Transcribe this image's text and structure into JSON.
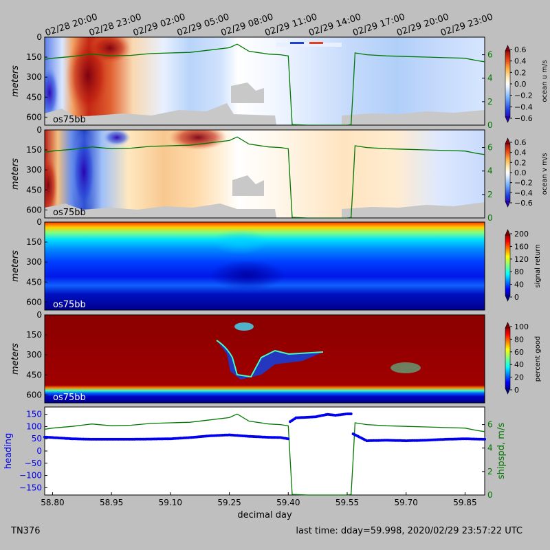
{
  "footer": {
    "cruise": "TN376",
    "last_time": "last time: dday=59.998,  2020/02/29 23:57:22 UTC"
  },
  "colors": {
    "figure_bg": "#bfbfbf",
    "speed_line": "#007700",
    "heading_dots": "#0000ee",
    "missing": "#c8c8c8"
  },
  "chart_data": [
    {
      "type": "heatmap",
      "panel": "ocean-u",
      "ylabel": "meters",
      "y_ticks": [
        "0",
        "150",
        "300",
        "450",
        "600"
      ],
      "ylim": [
        660,
        0
      ],
      "colorbar_label": "ocean u m/s",
      "colorbar_ticks": [
        "0.6",
        "0.4",
        "0.2",
        "0.0",
        "−0.2",
        "−0.4",
        "−0.6"
      ],
      "colorbar_range": [
        -0.6,
        0.6
      ],
      "colormap": "blue-white-red",
      "right_axis_ticks": [
        "0",
        "2",
        "4",
        "6"
      ],
      "right_axis_range": [
        0,
        7.5
      ],
      "instrument_label": "os75bb",
      "top_time_ticks": [
        "02/28 20:00",
        "02/28 23:00",
        "02/29 02:00",
        "02/29 05:00",
        "02/29 08:00",
        "02/29 11:00",
        "02/29 14:00",
        "02/29 17:00",
        "02/29 20:00",
        "02/29 23:00"
      ]
    },
    {
      "type": "heatmap",
      "panel": "ocean-v",
      "ylabel": "meters",
      "y_ticks": [
        "0",
        "150",
        "300",
        "450",
        "600"
      ],
      "ylim": [
        660,
        0
      ],
      "colorbar_label": "ocean v m/s",
      "colorbar_ticks": [
        "0.6",
        "0.4",
        "0.2",
        "0.0",
        "−0.2",
        "−0.4",
        "−0.6"
      ],
      "colorbar_range": [
        -0.6,
        0.6
      ],
      "colormap": "blue-white-red",
      "right_axis_ticks": [
        "0",
        "2",
        "4",
        "6"
      ],
      "right_axis_range": [
        0,
        7.5
      ],
      "instrument_label": "os75bb"
    },
    {
      "type": "heatmap",
      "panel": "signal-return",
      "ylabel": "meters",
      "y_ticks": [
        "0",
        "150",
        "300",
        "450",
        "600"
      ],
      "ylim": [
        660,
        0
      ],
      "colorbar_label": "signal return",
      "colorbar_ticks": [
        "200",
        "160",
        "120",
        "80",
        "40",
        "0"
      ],
      "colorbar_range": [
        0,
        200
      ],
      "colormap": "jet",
      "instrument_label": "os75bb"
    },
    {
      "type": "heatmap",
      "panel": "percent-good",
      "ylabel": "meters",
      "y_ticks": [
        "0",
        "150",
        "300",
        "450",
        "600"
      ],
      "ylim": [
        660,
        0
      ],
      "colorbar_label": "percent good",
      "colorbar_ticks": [
        "100",
        "80",
        "60",
        "40",
        "20",
        "0"
      ],
      "colorbar_range": [
        0,
        100
      ],
      "colormap": "jet",
      "instrument_label": "os75bb"
    },
    {
      "type": "line",
      "panel": "heading-speed",
      "xlabel": "decimal day",
      "x_ticks": [
        "58.80",
        "58.95",
        "59.10",
        "59.25",
        "59.40",
        "59.55",
        "59.70",
        "59.85"
      ],
      "xlim": [
        58.78,
        59.9
      ],
      "ylabel": "heading",
      "y_ticks": [
        "150",
        "100",
        "50",
        "0",
        "−50",
        "−100",
        "−150"
      ],
      "ylim": [
        -180,
        180
      ],
      "right_ylabel": "shipspd, m/s",
      "right_axis_ticks": [
        "0",
        "2",
        "4",
        "6"
      ],
      "right_axis_range": [
        0,
        7.5
      ],
      "series": [
        {
          "name": "heading",
          "x": [
            58.78,
            58.85,
            58.9,
            59.0,
            59.1,
            59.15,
            59.2,
            59.25,
            59.3,
            59.35,
            59.38,
            59.4,
            59.405,
            59.42,
            59.45,
            59.47,
            59.5,
            59.52,
            59.55,
            59.56,
            59.565,
            59.6,
            59.65,
            59.7,
            59.75,
            59.8,
            59.85,
            59.9
          ],
          "y": [
            57,
            50,
            48,
            48,
            50,
            55,
            62,
            66,
            60,
            56,
            55,
            50,
            120,
            136,
            138,
            140,
            150,
            146,
            152,
            152,
            70,
            42,
            44,
            42,
            44,
            48,
            50,
            48
          ]
        },
        {
          "name": "shipspd",
          "x": [
            58.78,
            58.8,
            58.85,
            58.9,
            58.95,
            59.0,
            59.05,
            59.1,
            59.15,
            59.2,
            59.25,
            59.27,
            59.3,
            59.35,
            59.38,
            59.4,
            59.405,
            59.41,
            59.45,
            59.5,
            59.55,
            59.56,
            59.565,
            59.57,
            59.6,
            59.65,
            59.7,
            59.75,
            59.8,
            59.85,
            59.88,
            59.9
          ],
          "y": [
            5.6,
            5.7,
            5.85,
            6.05,
            5.9,
            5.95,
            6.1,
            6.15,
            6.2,
            6.4,
            6.6,
            6.9,
            6.3,
            6.05,
            6.0,
            5.9,
            3.0,
            0.05,
            0.0,
            0.0,
            0.0,
            0.05,
            3.0,
            6.15,
            6.0,
            5.9,
            5.85,
            5.8,
            5.75,
            5.7,
            5.5,
            5.4
          ]
        }
      ]
    }
  ]
}
